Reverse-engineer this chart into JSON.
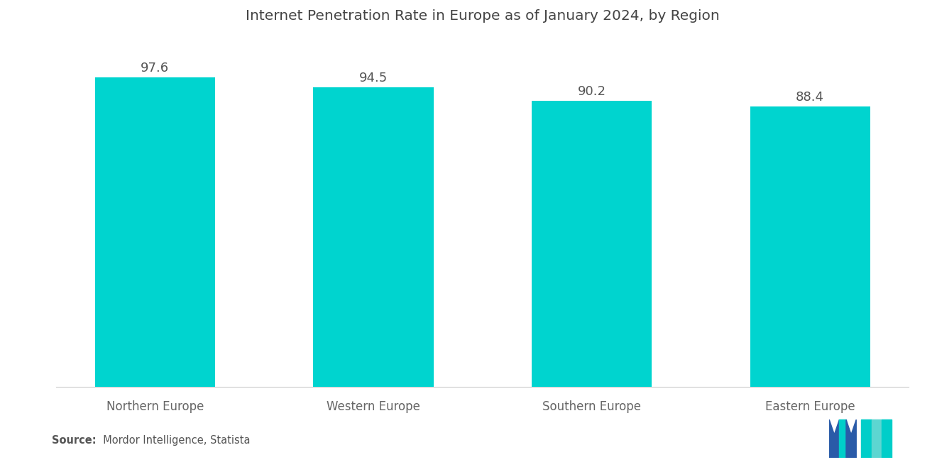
{
  "title": "Internet Penetration Rate in Europe as of January 2024, by Region",
  "categories": [
    "Northern Europe",
    "Western Europe",
    "Southern Europe",
    "Eastern Europe"
  ],
  "values": [
    97.6,
    94.5,
    90.2,
    88.4
  ],
  "bar_color": "#00D4CF",
  "value_labels": [
    "97.6",
    "94.5",
    "90.2",
    "88.4"
  ],
  "source_bold": "Source:",
  "source_normal": "  Mordor Intelligence, Statista",
  "background_color": "#FFFFFF",
  "title_fontsize": 14.5,
  "label_fontsize": 12,
  "value_fontsize": 13,
  "ylim": [
    0,
    110
  ],
  "bar_width": 0.55,
  "logo_blue": "#2A5BA8",
  "logo_teal": "#00CEC9",
  "logo_light_teal": "#5DD6D1"
}
